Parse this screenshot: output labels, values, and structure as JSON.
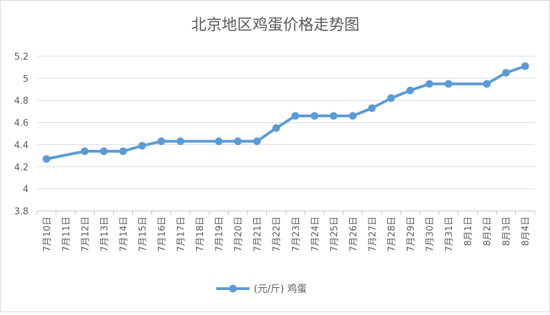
{
  "chart_data": {
    "type": "line",
    "title": "北京地区鸡蛋价格走势图",
    "categories": [
      "7月10日",
      "7月11日",
      "7月12日",
      "7月13日",
      "7月14日",
      "7月15日",
      "7月16日",
      "7月17日",
      "7月18日",
      "7月19日",
      "7月20日",
      "7月21日",
      "7月22日",
      "7月23日",
      "7月24日",
      "7月25日",
      "7月26日",
      "7月27日",
      "7月28日",
      "7月29日",
      "7月30日",
      "7月31日",
      "8月1日",
      "8月2日",
      "8月3日",
      "8月4日"
    ],
    "series": [
      {
        "name": "(元/斤) 鸡蛋",
        "color": "#5b9bd5",
        "values": [
          4.27,
          null,
          4.34,
          4.34,
          4.34,
          4.39,
          4.43,
          4.43,
          null,
          4.43,
          4.43,
          4.43,
          4.55,
          4.66,
          4.66,
          4.66,
          4.66,
          4.73,
          4.82,
          4.89,
          4.95,
          4.95,
          null,
          4.95,
          5.05,
          5.11
        ]
      }
    ],
    "ylim": [
      3.8,
      5.2
    ],
    "yticks": [
      "3.8",
      "4",
      "4.2",
      "4.4",
      "4.6",
      "4.8",
      "5",
      "5.2"
    ],
    "grid": true,
    "legend": "bottom"
  }
}
